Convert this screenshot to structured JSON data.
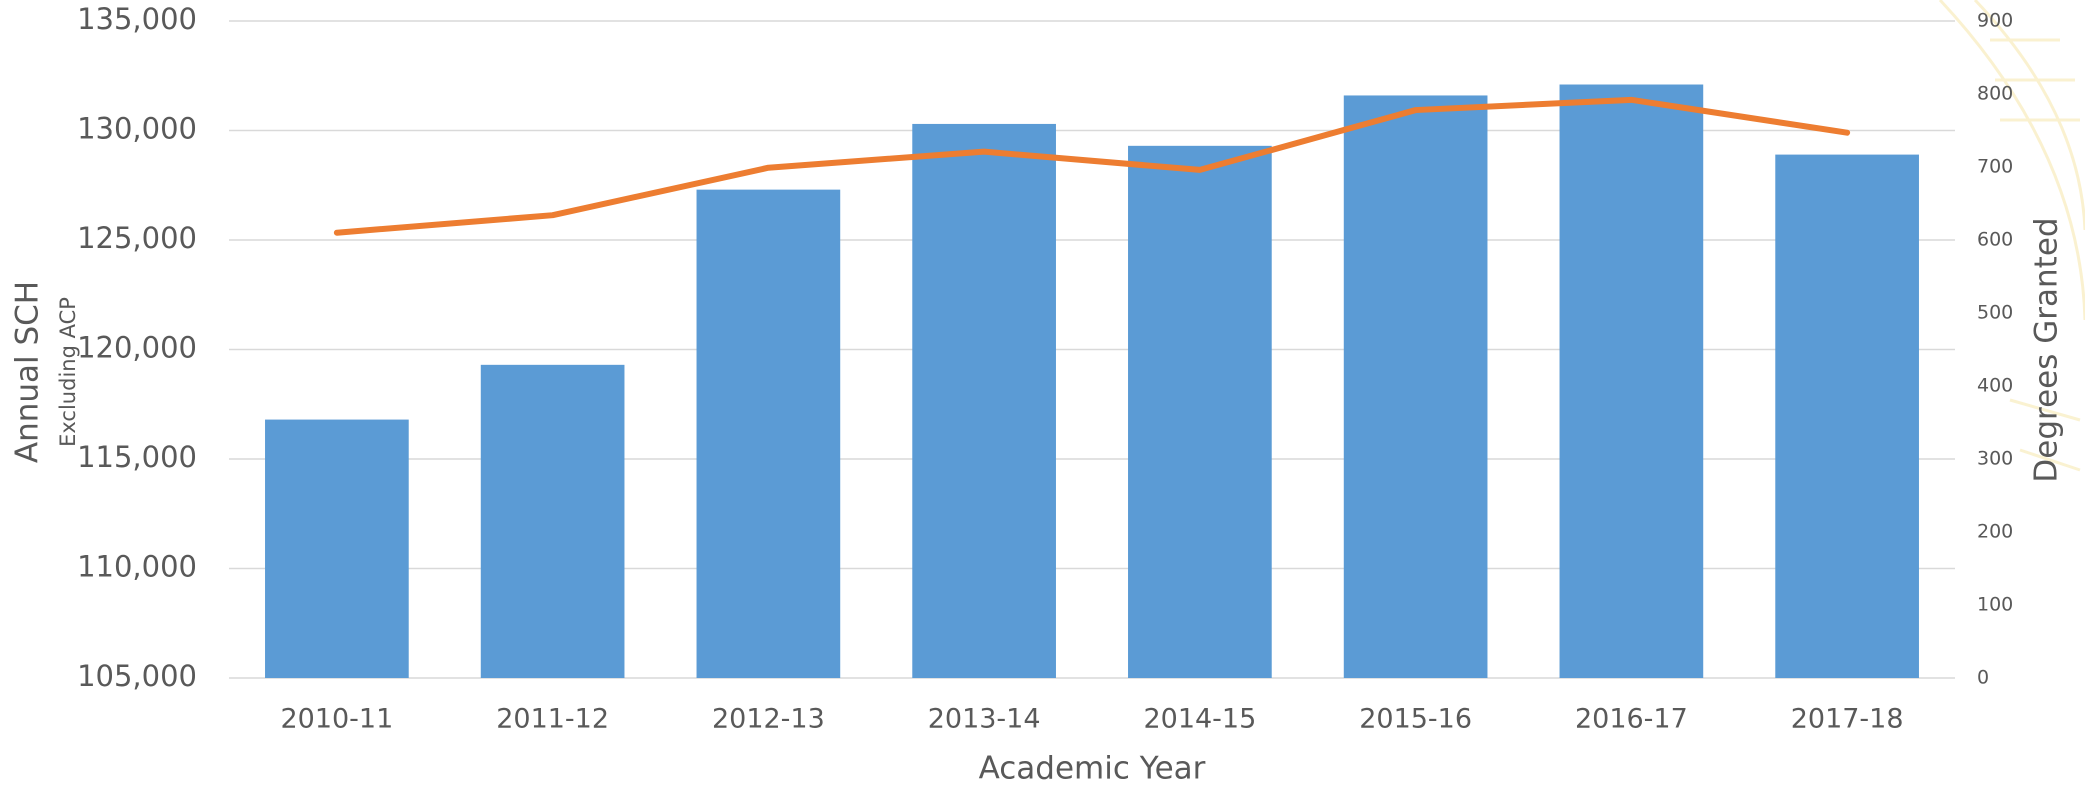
{
  "chart_data": {
    "type": "bar-line",
    "categories": [
      "2010-11",
      "2011-12",
      "2012-13",
      "2013-14",
      "2014-15",
      "2015-16",
      "2016-17",
      "2017-18"
    ],
    "series": [
      {
        "name": "Annual SCH",
        "type": "bar",
        "color": "#5b9bd5",
        "values": [
          116800,
          119300,
          127300,
          130300,
          129300,
          131600,
          132100,
          128900
        ]
      },
      {
        "name": "Degrees Granted",
        "type": "line",
        "axis": "y2",
        "color": "#ed7d31",
        "values": [
          610,
          634,
          699,
          721,
          696,
          778,
          792,
          747
        ]
      }
    ],
    "ylim": [
      105000,
      135000
    ],
    "yticks": [
      {
        "value": 105000,
        "label": "105,000"
      },
      {
        "value": 110000,
        "label": "110,000"
      },
      {
        "value": 115000,
        "label": "115,000"
      },
      {
        "value": 120000,
        "label": "120,000"
      },
      {
        "value": 125000,
        "label": "125,000"
      },
      {
        "value": 130000,
        "label": "130,000"
      },
      {
        "value": 135000,
        "label": "135,000"
      }
    ],
    "y2lim": [
      0,
      900
    ],
    "y2ticks": [
      0,
      100,
      200,
      300,
      400,
      500,
      600,
      700,
      800,
      900
    ],
    "ylabel": "Annual SCH",
    "ylabel_sub": "Excluding ACP",
    "y2label": "Degrees Granted",
    "xlabel": "Academic Year",
    "grid": true
  }
}
